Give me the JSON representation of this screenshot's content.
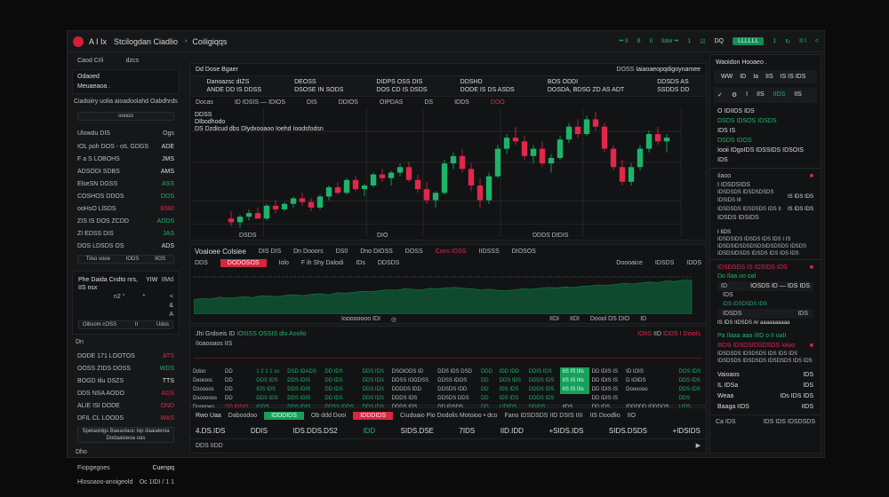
{
  "header": {
    "app": "A I Ix",
    "title": "Stcilogdan Ciadlio",
    "breadcrumb": "Coiligiqqs",
    "right_items": [
      "•• Ii",
      "8",
      "Ii",
      "Iiaw ••",
      "1",
      "☑",
      "DQ",
      "LLLLLL",
      "1",
      "↻",
      "II I",
      "<"
    ]
  },
  "left": {
    "tabs": [
      "Caod Crli",
      "dzcs"
    ],
    "account_title": "Odaoed",
    "account_sub": "Meuaeaoa .",
    "desc": "Ciadoiiry uolia aioadoolahd Oabdhrds",
    "search_placeholder": "ooooo",
    "list_header": [
      "Ulowdu DIS",
      "Ogs"
    ],
    "list": [
      [
        "IOL poh DOS - oIL GDGS",
        "ADE",
        "w"
      ],
      [
        "F a S LOBOHS",
        "JMS",
        "w"
      ],
      [
        "ADSODI SDBS",
        "AMS",
        "w"
      ],
      [
        "ElseSN DGSS",
        "ASS",
        "g"
      ],
      [
        "COSHOS DDOS",
        "DOS",
        "g"
      ],
      [
        "ooHsO LlSDS",
        "8080",
        "r"
      ],
      [
        "ZIS IS DOS ZCDD",
        "ADDS",
        "g"
      ],
      [
        "ZI EDSS DIS",
        "JAS",
        "g"
      ],
      [
        "DOS LDSDS OS",
        "ADS",
        "w"
      ]
    ],
    "footer_box": [
      "Tiiso vooe",
      "IODS",
      "IIOS"
    ],
    "widget": {
      "title": "Phe Daida Cndto nrs, IIS nsx",
      "c1": "YIW",
      "c2": "IIMd",
      "inputs": [
        "n2 °",
        "*",
        "<",
        "&",
        "A"
      ],
      "status": [
        "Oibsom cOSS",
        "II",
        "Udos"
      ]
    },
    "list2_label": "Dn",
    "list2": [
      [
        "DODE 171 LOOTOS",
        "ATS",
        "r"
      ],
      [
        "OOSS ZIDS DOSS",
        "WDS",
        "g"
      ],
      [
        "BOGD tilu DSZS",
        "TTS",
        "w"
      ],
      [
        "DDS NSA AODO",
        "ADS",
        "r"
      ],
      [
        "ALIE ISI DODE",
        "DND",
        "r"
      ],
      [
        "DFIL CL LOODS",
        "WAS",
        "r"
      ]
    ],
    "bottom_bar": "Spelaoidgs Baeaxlaoc lop daaialenia Dodaaioeoa oas",
    "bottom_label": "Dho",
    "bottom_rows": [
      [
        "Fiopgegoes",
        "Cuenpq"
      ],
      [
        "Hlosoaoo-anoigeold",
        "Oc 1IDI   / 1 1"
      ]
    ]
  },
  "chart": {
    "title": "Dd Dose Bgaer",
    "toggle": "DOSS",
    "toggle_label": "Iaiaoaeopqdigoynamee",
    "stats": [
      [
        "Danoazsc dIZS",
        "ANDE DD IS DDSS"
      ],
      [
        "DEOSS",
        "DSOSE IN SODS"
      ],
      [
        "DIDPS OSS DIS",
        "DOS CD IS DSDS"
      ],
      [
        "DDSHD",
        "DODE IS DS ASDS"
      ],
      [
        "BOS ODDI",
        "DOSDA, BDSG ZD AS ADT"
      ],
      [
        "DDSDS AS",
        "SSDDS DD"
      ]
    ],
    "subheader": [
      "Docas",
      "ID IDSIS  —  IDIOS",
      "DIS",
      "DDIOS",
      "OIPDAS",
      "DS",
      "IDDS",
      "DOO"
    ],
    "legend": [
      "DDSS",
      "DIbodhodo",
      "DS  Dzdicud dbs Dlydxooaoo Ioehd Ioodsfodsn"
    ],
    "footer": [
      "DSDS",
      "DIO",
      "DDDS  DIDIS"
    ],
    "chart_data": {
      "type": "candlestick",
      "ylim": [
        20,
        90
      ],
      "grid": true,
      "ohlc": [
        [
          30,
          34,
          26,
          28
        ],
        [
          28,
          32,
          25,
          31
        ],
        [
          31,
          35,
          29,
          33
        ],
        [
          33,
          36,
          30,
          30
        ],
        [
          30,
          38,
          29,
          37
        ],
        [
          37,
          40,
          33,
          35
        ],
        [
          35,
          39,
          34,
          38
        ],
        [
          38,
          42,
          36,
          41
        ],
        [
          41,
          44,
          37,
          39
        ],
        [
          39,
          41,
          34,
          36
        ],
        [
          36,
          43,
          35,
          42
        ],
        [
          42,
          48,
          40,
          47
        ],
        [
          47,
          50,
          43,
          44
        ],
        [
          44,
          52,
          43,
          51
        ],
        [
          51,
          53,
          45,
          46
        ],
        [
          46,
          49,
          42,
          48
        ],
        [
          48,
          55,
          47,
          54
        ],
        [
          54,
          57,
          50,
          52
        ],
        [
          52,
          56,
          48,
          55
        ],
        [
          55,
          60,
          53,
          58
        ],
        [
          58,
          61,
          50,
          51
        ],
        [
          51,
          54,
          44,
          46
        ],
        [
          46,
          50,
          38,
          40
        ],
        [
          40,
          45,
          36,
          44
        ],
        [
          44,
          62,
          43,
          60
        ],
        [
          60,
          66,
          57,
          64
        ],
        [
          64,
          68,
          55,
          57
        ],
        [
          57,
          60,
          45,
          48
        ],
        [
          48,
          52,
          36,
          40
        ],
        [
          40,
          55,
          38,
          53
        ],
        [
          53,
          70,
          52,
          68
        ],
        [
          68,
          76,
          65,
          74
        ],
        [
          74,
          80,
          70,
          72
        ],
        [
          72,
          75,
          62,
          64
        ],
        [
          64,
          70,
          60,
          68
        ],
        [
          68,
          72,
          58,
          60
        ],
        [
          60,
          65,
          55,
          63
        ],
        [
          63,
          75,
          62,
          73
        ],
        [
          73,
          82,
          71,
          80
        ],
        [
          80,
          84,
          74,
          76
        ],
        [
          76,
          86,
          75,
          84
        ],
        [
          84,
          88,
          78,
          80
        ],
        [
          80,
          82,
          66,
          68
        ],
        [
          68,
          70,
          56,
          58
        ],
        [
          58,
          62,
          48,
          50
        ],
        [
          50,
          60,
          48,
          58
        ],
        [
          58,
          70,
          56,
          68
        ],
        [
          68,
          78,
          66,
          76
        ],
        [
          76,
          80,
          70,
          72
        ],
        [
          72,
          76,
          66,
          74
        ]
      ],
      "up_color": "#1fb36a",
      "down_color": "#e0284a"
    }
  },
  "volume": {
    "title": "Voaioee Colsiee",
    "tabs": [
      "DIS DIS",
      "Dn Dooors",
      "DS0",
      "Dno DIOSS",
      "DOSS",
      "Cons IOSS",
      "IIDSSS",
      "DIOSOS"
    ],
    "filter": [
      "DDS",
      "DODOSOS",
      "Iolo",
      "F ih Shy Dalodi",
      "IDs",
      "DDSDS",
      "Doooaice",
      "IDSDS",
      "IDDS"
    ],
    "values": [
      30,
      32,
      31,
      35,
      33,
      34,
      36,
      34,
      38,
      37,
      36,
      39,
      40,
      38,
      41,
      42,
      40,
      44,
      43,
      45,
      47,
      46,
      48,
      50,
      49,
      52,
      51,
      50,
      53,
      52,
      54,
      55,
      53,
      52,
      50,
      51,
      49,
      48,
      50,
      52,
      51,
      53,
      55,
      54,
      56,
      55,
      57,
      58,
      60,
      59,
      61,
      63,
      62,
      64,
      66,
      65,
      68,
      67,
      70,
      69
    ],
    "controls": [
      "Ioooooooo IDI",
      "◎",
      "IIDI",
      "IIDI",
      "Doool DS DIO",
      "ID"
    ]
  },
  "book": {
    "line1": [
      "Jhi Grdoeis",
      "ID",
      "IOIIISS OSSIS dio Aoolio"
    ],
    "line2": "IIoaooaos IIS",
    "right": [
      "IOIIS",
      "IID",
      "IDDS I  Doiols"
    ],
    "rows": [
      [
        "Ddoo",
        "DD",
        "1 2  1 1 ss",
        "DSD IDADS",
        "DD IDS",
        "DDS IDS",
        "DSOIODS ID",
        "DDS IDS  DSD",
        "DDD",
        "IDD IDD",
        "DDIS IDS",
        "IIS IS IIIs",
        "DD IDIS IS",
        "ID IOIS",
        "DOS IDS"
      ],
      [
        "Deoioos",
        "DD",
        "DDS IDS",
        "DDS IDIS",
        "DD IDS",
        "DDS IDS",
        "DDSS IODDSS",
        "DDSS IDOS",
        "DD",
        "DDS IDS",
        "DDDS IDS",
        "IIS IS IIIs",
        "DD IDIS IS",
        "D IOIDS",
        "DDS IDS"
      ],
      [
        "Dzoooos",
        "DD",
        "IDS IDS",
        "DDS IDIS",
        "DD IDS",
        "DDS IDS",
        "DDDDS IDD",
        "DDSDS IDD",
        "DD",
        "IDS IDS",
        "DDDS IDS",
        "IIS IS IIIs",
        "DD IDIS IS",
        "Doooooo",
        "DDS IDS"
      ],
      [
        "Dsooooos",
        "DD",
        "DDS IDS",
        "DDS IDIS",
        "DD IDS",
        "DDS IDS",
        "DDDS IDS",
        "DDSDS DDS",
        "DD",
        "IDS IDS",
        "DDDS IDS",
        "",
        "DD IDIS IS",
        "",
        "DDS"
      ],
      [
        "Dooooes",
        "DD IDDIS",
        "IDDS",
        "DDS IDIS",
        "DDSS IDDS",
        "DDS IDS",
        "DDDS IDS",
        "DD IDSDS",
        "DD",
        "I IDIDS",
        "DDIDS",
        "IIDS",
        "DD IDS",
        "IDDDDD IDDDOS",
        "I IDS"
      ]
    ]
  },
  "trade": {
    "label": "Rwo Uaa",
    "l2": "Daboodoo",
    "buy": "IDDDIDS",
    "l3": "Ob ddd Dooi",
    "sell": "IDDDIDS",
    "l4": "Ciudoaio Pio Dodolis Motoioo • dco",
    "l5": "Fano IDSDSDS IID DSIS  IIII",
    "l6": "IIS Doodlio",
    "l7": "IIO",
    "values": [
      "4.DS.IDS",
      "DDIS",
      "IDS.DDS.DS2",
      "IDD",
      "SIDS.DSE",
      "7IDS",
      "IID.IDD",
      "+SIDS.IDS",
      "SIDS.DSDS",
      "+IDSIDS"
    ],
    "footer": "DDS IIDD"
  },
  "right": {
    "title": "Waoidon Hooaeo .",
    "tabs": [
      "WW",
      "ID",
      "Ia",
      "IIS",
      "IS IS IDS"
    ],
    "row2": [
      "✓",
      "⚙",
      "I",
      "IIS",
      "IIDS",
      "IIS"
    ],
    "items": [
      "O IDIIDS IDS",
      "DSDS IDSOS IDSDS",
      "IDS IS",
      "DSDS IDOS",
      "Iooii IDgoIDS IDSSIDS IDSOIS IDS"
    ],
    "sec1": {
      "title": "Iiaoo",
      "lines": [
        "I  IDSDSIDS",
        "IDSDSDS IDSDSDSDS IDSIDS  III",
        "IDSDSDS IDSDSDS IDS   II",
        "IDSDS IDSIDS"
      ],
      "values": [
        "IS IDS IDS",
        "IS IDS IDS"
      ]
    },
    "sec2": {
      "lines": [
        "I IIDS",
        "IDSDSIDS IDSDS IDS IDS I IS",
        "IDSDSIDSDSDSDSIDSDSDS IDSDS",
        "IDSDSIDSDS IDSDS IDS IDS IDS"
      ]
    },
    "sec3": {
      "title": "IDSDSDS IS IDSIDS IDS",
      "green": "Do Ilaa oo oal",
      "row": [
        "ID",
        "IOSDS ID  —  IDS IDS"
      ],
      "sub": "IDS",
      "gline": "IDS IDSDSDS IDS",
      "row2": [
        "IDSDS",
        "IDS"
      ],
      "ext": [
        "IS",
        "IDS IIDSDS Ar aaaaaaaaaa"
      ]
    },
    "sec4": {
      "green": "Pa Ilaaa aaa IIID o II oaII",
      "red": "IIIDS  IDSDSIDSDSDS Ioioo",
      "lines": [
        "IDSDSDS IDSDSDS IDS IDS IDS",
        "IDSDSDS IDSDSDS IDSDSDS IDS IDS"
      ]
    },
    "sec5": [
      [
        "Vaioaos",
        "IDS"
      ],
      [
        "IL IDSa",
        "IDS"
      ],
      [
        "Weaa",
        "IDs IDS IDS"
      ],
      [
        "Baaga IIDS",
        "IIDS"
      ]
    ],
    "footer": [
      "Ca IDS",
      "IDS IDS IDSDSDS"
    ]
  }
}
